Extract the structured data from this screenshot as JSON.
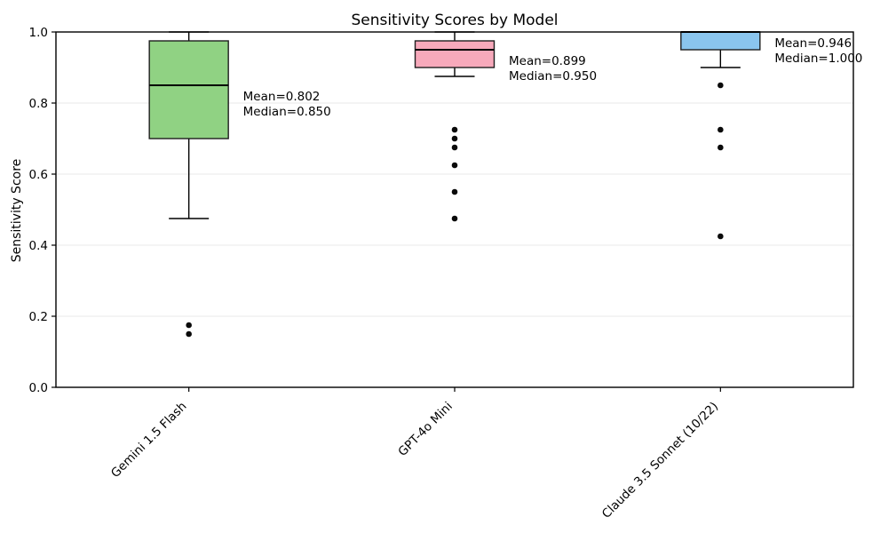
{
  "chart_data": {
    "type": "box",
    "title": "Sensitivity Scores by Model",
    "xlabel": "",
    "ylabel": "Sensitivity Score",
    "ylim": [
      0.0,
      1.0
    ],
    "yticks": [
      "0.0",
      "0.2",
      "0.4",
      "0.6",
      "0.8",
      "1.0"
    ],
    "ytick_values": [
      0.0,
      0.2,
      0.4,
      0.6,
      0.8,
      1.0
    ],
    "grid": "horizontal",
    "legend": "none",
    "categories": [
      "Gemini 1.5 Flash",
      "GPT-4o Mini",
      "Claude 3.5 Sonnet (10/22)"
    ],
    "series": [
      {
        "label": "Gemini 1.5 Flash",
        "box_color": "#90d283",
        "whisker_low": 0.475,
        "q1": 0.7,
        "median": 0.85,
        "q3": 0.975,
        "whisker_high": 1.0,
        "mean": 0.802,
        "outliers": [
          0.175,
          0.15
        ],
        "annotation_lines": [
          "Mean=0.802",
          "Median=0.850"
        ]
      },
      {
        "label": "GPT-4o Mini",
        "box_color": "#f7a9bb",
        "whisker_low": 0.875,
        "q1": 0.9,
        "median": 0.95,
        "q3": 0.975,
        "whisker_high": 1.0,
        "mean": 0.899,
        "outliers": [
          0.725,
          0.7,
          0.675,
          0.625,
          0.55,
          0.475
        ],
        "annotation_lines": [
          "Mean=0.899",
          "Median=0.950"
        ]
      },
      {
        "label": "Claude 3.5 Sonnet (10/22)",
        "box_color": "#8ac5ee",
        "whisker_low": 0.9,
        "q1": 0.95,
        "median": 1.0,
        "q3": 1.0,
        "whisker_high": 1.0,
        "mean": 0.946,
        "outliers": [
          0.85,
          0.725,
          0.675,
          0.425
        ],
        "annotation_lines": [
          "Mean=0.946",
          "Median=1.000"
        ]
      }
    ],
    "colors": {
      "box_edge": "#1f1f1f",
      "median_line": "#000000",
      "whisker": "#000000",
      "outlier_dot": "#0a0a0a",
      "gridline": "#e9e9e9",
      "spine": "#000000",
      "background": "#ffffff"
    }
  }
}
